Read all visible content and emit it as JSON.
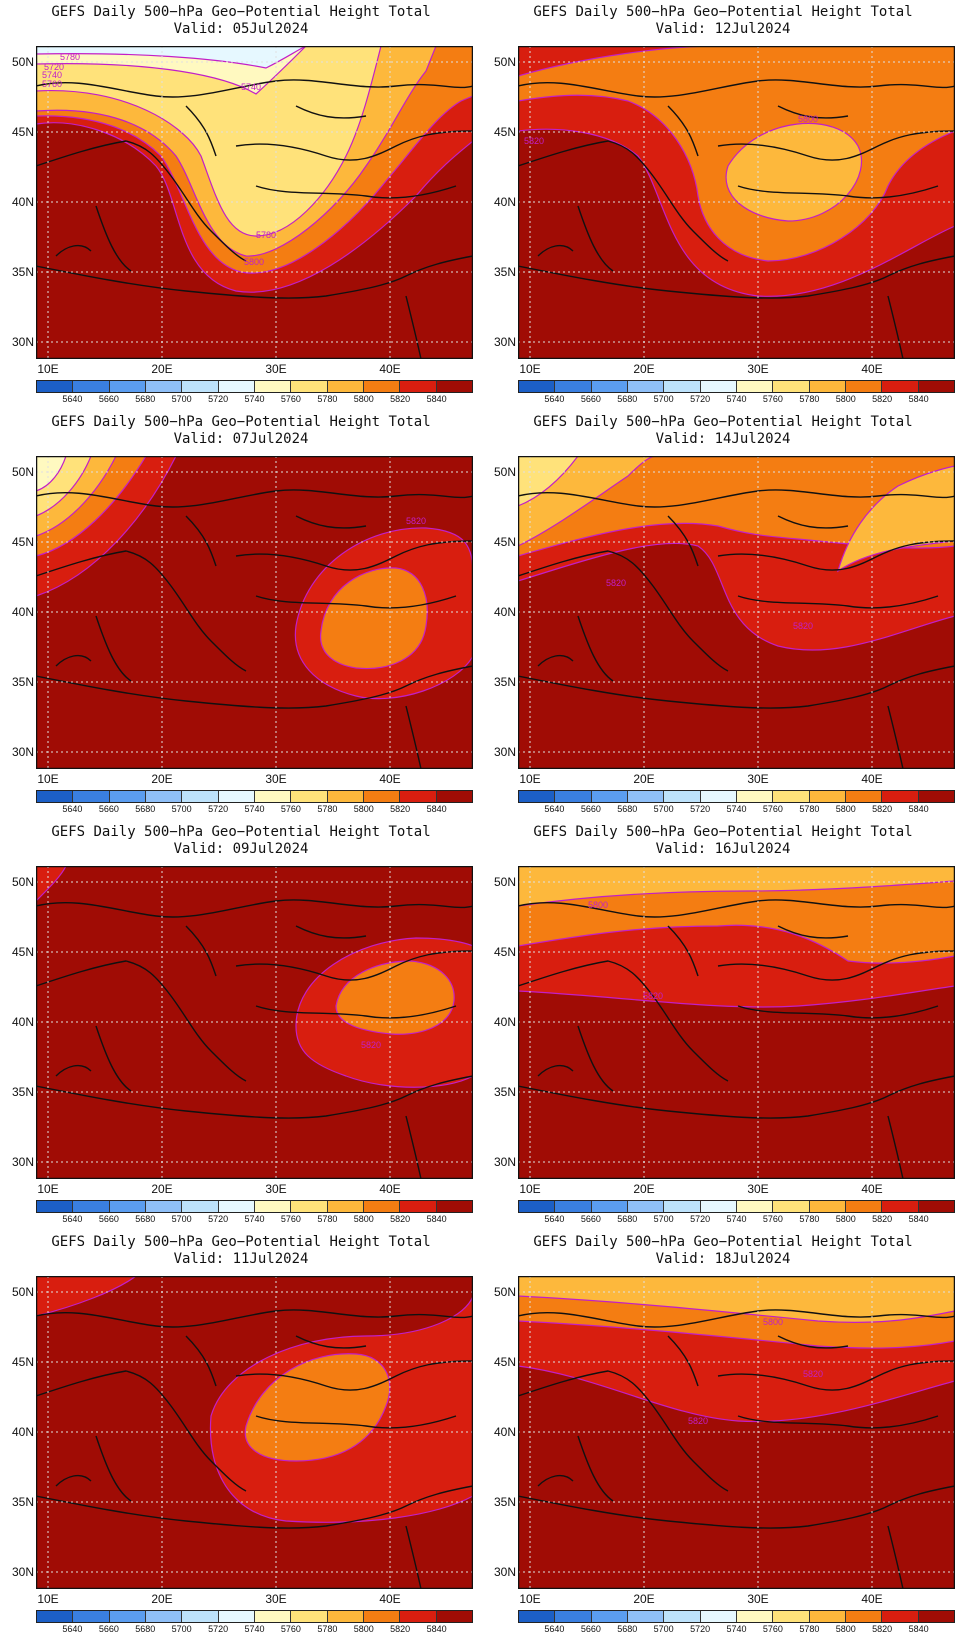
{
  "figure": {
    "product_title": "GEFS Daily 500−hPa Geo−Potential Height Total",
    "lat_labels": [
      "50N",
      "45N",
      "40N",
      "35N",
      "30N"
    ],
    "lon_labels": [
      "10E",
      "20E",
      "30E",
      "40E"
    ],
    "colorbar_ticks": [
      "5640",
      "5660",
      "5680",
      "5700",
      "5720",
      "5740",
      "5760",
      "5780",
      "5800",
      "5820",
      "5840"
    ],
    "colorbar_colors": [
      "#1c5fc6",
      "#3a7fe0",
      "#5b9df0",
      "#8fbff7",
      "#bde2fb",
      "#e6f8ff",
      "#fff9c0",
      "#ffe27a",
      "#fdb83c",
      "#f47d12",
      "#d81e0f",
      "#a00c05"
    ],
    "contour_color": "#c21fc8",
    "coastline_color": "#111111"
  },
  "panels": [
    {
      "valid": "Valid: 05Jul2024",
      "labels": [
        "5780",
        "5720",
        "5740",
        "5760",
        "5740",
        "5780",
        "5800"
      ]
    },
    {
      "valid": "Valid: 12Jul2024",
      "labels": [
        "5800",
        "5820"
      ]
    },
    {
      "valid": "Valid: 07Jul2024",
      "labels": [
        "5820"
      ]
    },
    {
      "valid": "Valid: 14Jul2024",
      "labels": [
        "5820",
        "5820"
      ]
    },
    {
      "valid": "Valid: 09Jul2024",
      "labels": [
        "5820"
      ]
    },
    {
      "valid": "Valid: 16Jul2024",
      "labels": [
        "5800",
        "5820"
      ]
    },
    {
      "valid": "Valid: 11Jul2024",
      "labels": []
    },
    {
      "valid": "Valid: 18Jul2024",
      "labels": [
        "5800",
        "5820",
        "5820"
      ]
    }
  ]
}
